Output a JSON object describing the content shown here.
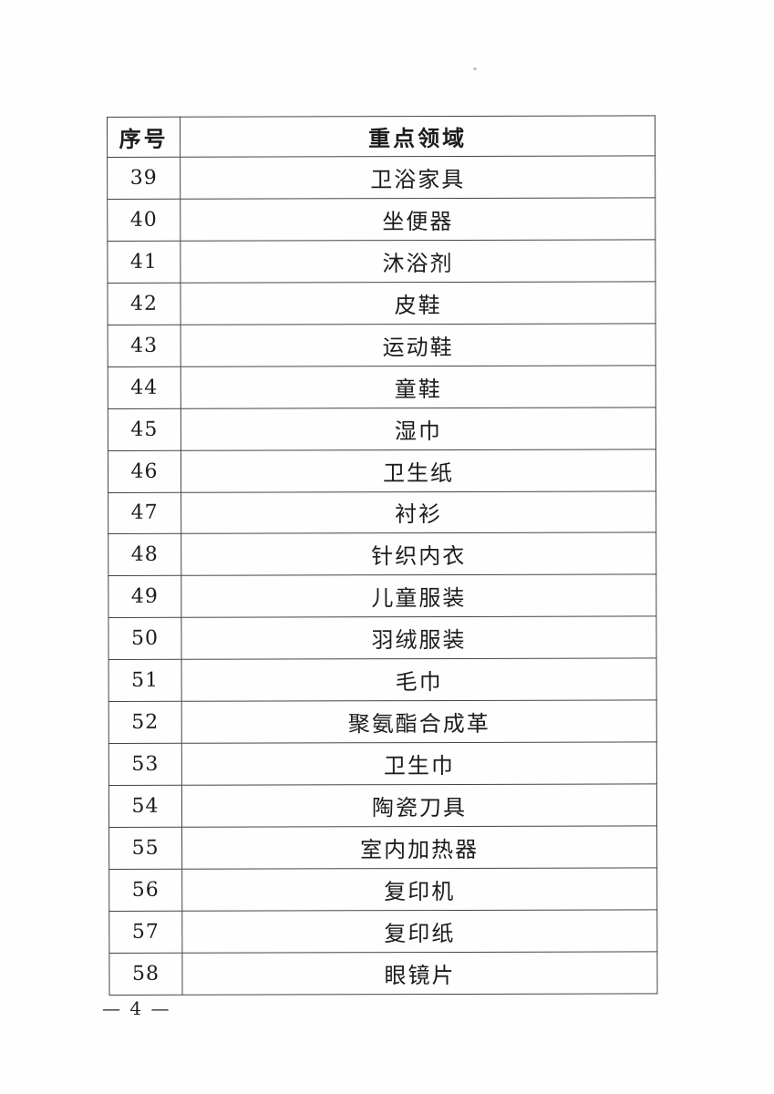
{
  "page": {
    "number_label": "— 4 —"
  },
  "table": {
    "headers": {
      "col1": "序号",
      "col2": "重点领域"
    },
    "rows": [
      {
        "no": "39",
        "area": "卫浴家具"
      },
      {
        "no": "40",
        "area": "坐便器"
      },
      {
        "no": "41",
        "area": "沐浴剂"
      },
      {
        "no": "42",
        "area": "皮鞋"
      },
      {
        "no": "43",
        "area": "运动鞋"
      },
      {
        "no": "44",
        "area": "童鞋"
      },
      {
        "no": "45",
        "area": "湿巾"
      },
      {
        "no": "46",
        "area": "卫生纸"
      },
      {
        "no": "47",
        "area": "衬衫"
      },
      {
        "no": "48",
        "area": "针织内衣"
      },
      {
        "no": "49",
        "area": "儿童服装"
      },
      {
        "no": "50",
        "area": "羽绒服装"
      },
      {
        "no": "51",
        "area": "毛巾"
      },
      {
        "no": "52",
        "area": "聚氨酯合成革"
      },
      {
        "no": "53",
        "area": "卫生巾"
      },
      {
        "no": "54",
        "area": "陶瓷刀具"
      },
      {
        "no": "55",
        "area": "室内加热器"
      },
      {
        "no": "56",
        "area": "复印机"
      },
      {
        "no": "57",
        "area": "复印纸"
      },
      {
        "no": "58",
        "area": "眼镜片"
      }
    ]
  }
}
